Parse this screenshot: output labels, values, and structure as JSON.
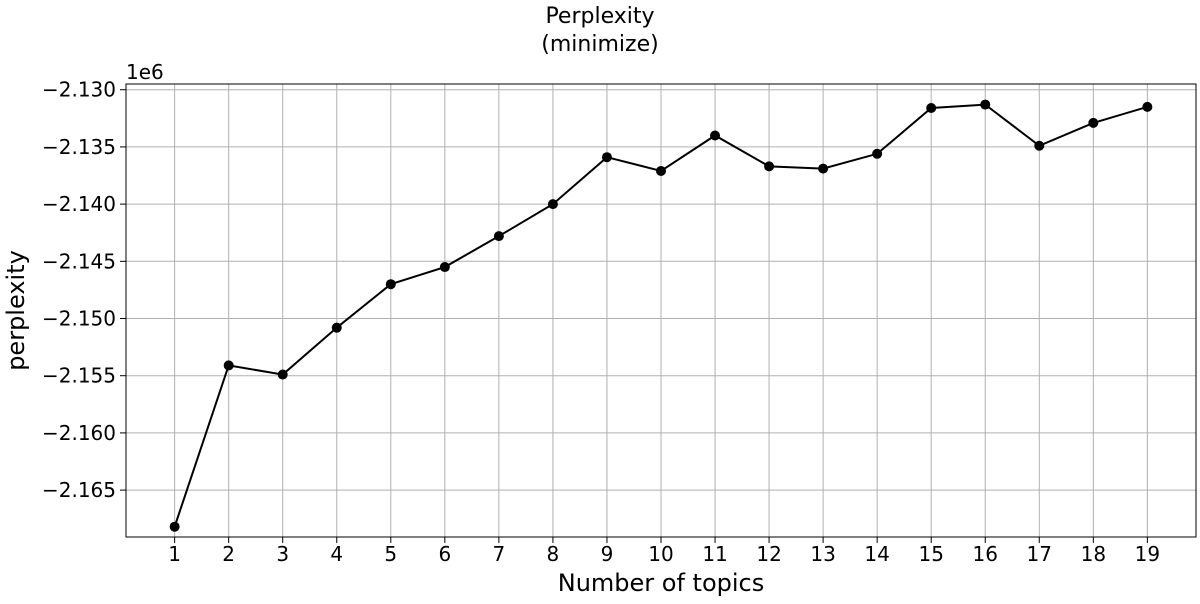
{
  "chart_data": {
    "type": "line",
    "title_lines": [
      "Perplexity",
      "(minimize)"
    ],
    "xlabel": "Number of topics",
    "ylabel": "perplexity",
    "y_offset_label": "1e6",
    "x": [
      1,
      2,
      3,
      4,
      5,
      6,
      7,
      8,
      9,
      10,
      11,
      12,
      13,
      14,
      15,
      16,
      17,
      18,
      19
    ],
    "x_tick_labels": [
      "1",
      "2",
      "3",
      "4",
      "5",
      "6",
      "7",
      "8",
      "9",
      "10",
      "11",
      "12",
      "13",
      "14",
      "15",
      "16",
      "17",
      "18",
      "19"
    ],
    "xlim": [
      0.1,
      19.9
    ],
    "ylim": [
      -2.1691,
      -2.1295
    ],
    "y_ticks": [
      -2.13,
      -2.135,
      -2.14,
      -2.145,
      -2.15,
      -2.155,
      -2.16,
      -2.165
    ],
    "y_tick_labels": [
      "−2.130",
      "−2.135",
      "−2.140",
      "−2.145",
      "−2.150",
      "−2.155",
      "−2.160",
      "−2.165"
    ],
    "series": [
      {
        "values": [
          -2.1682,
          -2.1541,
          -2.1549,
          -2.1508,
          -2.147,
          -2.1455,
          -2.1428,
          -2.14,
          -2.1359,
          -2.1371,
          -2.134,
          -2.1367,
          -2.1369,
          -2.1356,
          -2.1316,
          -2.1313,
          -2.1349,
          -2.1329,
          -2.1315
        ],
        "color": "#000000",
        "marker": "circle"
      }
    ],
    "grid": true,
    "legend": "none"
  }
}
